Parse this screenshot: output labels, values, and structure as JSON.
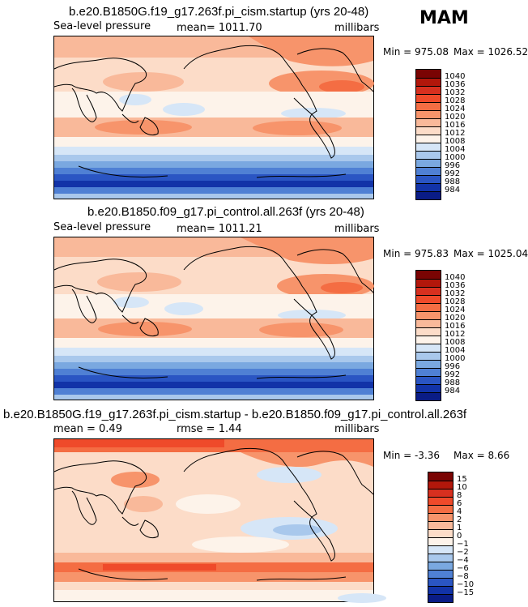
{
  "season": "MAM",
  "panels": [
    {
      "title": "b.e20.B1850G.f19_g17.263f.pi_cism.startup (yrs 20-48)",
      "left_label": "Sea-level pressure",
      "center_label": "mean= 1011.70",
      "right_label": "millibars",
      "min_label": "Min = 975.08",
      "max_label": "Max = 1026.52"
    },
    {
      "title": "b.e20.B1850.f09_g17.pi_control.all.263f (yrs 20-48)",
      "left_label": "Sea-level pressure",
      "center_label": "mean= 1011.21",
      "right_label": "millibars",
      "min_label": "Min = 975.83",
      "max_label": "Max = 1025.04"
    },
    {
      "title": "b.e20.B1850G.f19_g17.263f.pi_cism.startup - b.e20.B1850.f09_g17.pi_control.all.263f",
      "left_label": "mean =     0.49",
      "center_label": "rmse =     1.44",
      "right_label": "millibars",
      "min_label": "Min =   -3.36",
      "max_label": "Max =    8.66"
    }
  ],
  "colorbars": {
    "absolute": {
      "ticks": [
        "1040",
        "1036",
        "1032",
        "1028",
        "1024",
        "1020",
        "1016",
        "1012",
        "1008",
        "1004",
        "1000",
        "996",
        "992",
        "988",
        "984"
      ],
      "colors": [
        "#7a0403",
        "#b2170b",
        "#d7301f",
        "#ef4a2a",
        "#f46d43",
        "#f7946b",
        "#f9b99a",
        "#fcdcc8",
        "#fdf3ea",
        "#d6e6f7",
        "#a9c8ec",
        "#7aa8e0",
        "#4f80d4",
        "#2a55c3",
        "#1233a8",
        "#0a1c86"
      ]
    },
    "difference": {
      "ticks": [
        "15",
        "10",
        "8",
        "6",
        "4",
        "2",
        "1",
        "0",
        "−1",
        "−2",
        "−4",
        "−6",
        "−8",
        "−10",
        "−15"
      ],
      "colors": [
        "#7a0403",
        "#b2170b",
        "#d7301f",
        "#ef4a2a",
        "#f46d43",
        "#f7946b",
        "#f9b99a",
        "#fcdcc8",
        "#fdf3ea",
        "#d6e6f7",
        "#a9c8ec",
        "#7aa8e0",
        "#4f80d4",
        "#2a55c3",
        "#1233a8",
        "#0a1c86"
      ]
    }
  }
}
